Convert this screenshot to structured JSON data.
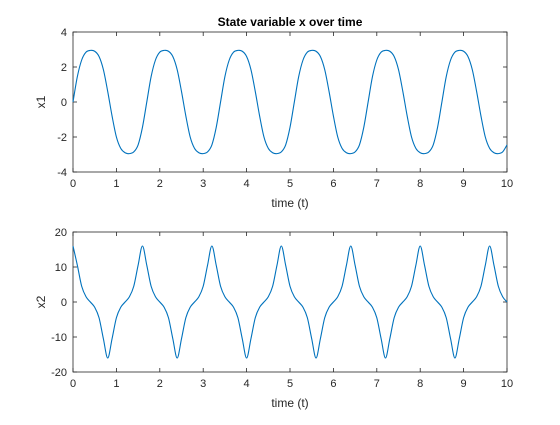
{
  "figure": {
    "background": "#ffffff",
    "line_color": "#0072BD",
    "axis_color": "#262626"
  },
  "chart_data": [
    {
      "type": "line",
      "title": "State variable x over time",
      "xlabel": "time (t)",
      "ylabel": "x1",
      "xlim": [
        0,
        10
      ],
      "ylim": [
        -4,
        4
      ],
      "xticks": [
        0,
        1,
        2,
        3,
        4,
        5,
        6,
        7,
        8,
        9,
        10
      ],
      "yticks": [
        -4,
        -2,
        0,
        2,
        4
      ],
      "grid": false,
      "series": [
        {
          "x": [
            0,
            0.1,
            0.2,
            0.3,
            0.4,
            0.5,
            0.6,
            0.7,
            0.8,
            0.9,
            1.0,
            1.1,
            1.2,
            1.3,
            1.4,
            1.5,
            1.6,
            1.7,
            1.8,
            1.9,
            2.0,
            2.1,
            2.2,
            2.3,
            2.4,
            2.5,
            2.6,
            2.7,
            2.8,
            2.9,
            3.0,
            3.1,
            3.2,
            3.3,
            3.4,
            3.5,
            3.6,
            3.7,
            3.8,
            3.9,
            4.0,
            4.1,
            4.2,
            4.3,
            4.4,
            4.5,
            4.6,
            4.7,
            4.8,
            4.9,
            5.0,
            5.1,
            5.2,
            5.3,
            5.4,
            5.5,
            5.6,
            5.7,
            5.8,
            5.9,
            6.0,
            6.1,
            6.2,
            6.3,
            6.4,
            6.5,
            6.6,
            6.7,
            6.8,
            6.9,
            7.0,
            7.1,
            7.2,
            7.3,
            7.4,
            7.5,
            7.6,
            7.7,
            7.8,
            7.9,
            8.0,
            8.1,
            8.2,
            8.3,
            8.4,
            8.5,
            8.6,
            8.7,
            8.8,
            8.9,
            9.0,
            9.1,
            9.2,
            9.3,
            9.4,
            9.5,
            9.6,
            9.7,
            9.8,
            9.9,
            10.0
          ],
          "y": [
            0,
            1.45,
            2.4,
            2.85,
            2.95,
            2.9,
            2.6,
            1.85,
            0.6,
            -0.8,
            -2.0,
            -2.65,
            -2.9,
            -2.95,
            -2.85,
            -2.45,
            -1.45,
            0,
            1.45,
            2.4,
            2.85,
            2.95,
            2.9,
            2.6,
            1.85,
            0.6,
            -0.8,
            -2.0,
            -2.65,
            -2.9,
            -2.95,
            -2.85,
            -2.45,
            -1.45,
            0,
            1.45,
            2.4,
            2.85,
            2.95,
            2.9,
            2.6,
            1.85,
            0.6,
            -0.8,
            -2.0,
            -2.65,
            -2.9,
            -2.95,
            -2.85,
            -2.45,
            -1.45,
            0,
            1.45,
            2.4,
            2.85,
            2.95,
            2.9,
            2.6,
            1.85,
            0.6,
            -0.8,
            -2.0,
            -2.65,
            -2.9,
            -2.95,
            -2.85,
            -2.45,
            -1.45,
            0,
            1.45,
            2.4,
            2.85,
            2.95,
            2.9,
            2.6,
            1.85,
            0.6,
            -0.8,
            -2.0,
            -2.65,
            -2.9,
            -2.95,
            -2.85,
            -2.45,
            -1.45,
            0,
            1.45,
            2.4,
            2.85,
            2.95,
            2.9,
            2.6,
            1.85,
            0.6,
            -0.8,
            -2.0,
            -2.65,
            -2.9,
            -2.95,
            -2.85,
            -2.45
          ]
        }
      ]
    },
    {
      "type": "line",
      "title": "",
      "xlabel": "time (t)",
      "ylabel": "x2",
      "xlim": [
        0,
        10
      ],
      "ylim": [
        -20,
        20
      ],
      "xticks": [
        0,
        1,
        2,
        3,
        4,
        5,
        6,
        7,
        8,
        9,
        10
      ],
      "yticks": [
        -20,
        -10,
        0,
        10,
        20
      ],
      "grid": false,
      "series": [
        {
          "x": [
            0,
            0.1,
            0.2,
            0.3,
            0.4,
            0.5,
            0.6,
            0.7,
            0.8,
            0.9,
            1.0,
            1.1,
            1.2,
            1.3,
            1.4,
            1.5,
            1.6,
            1.7,
            1.8,
            1.9,
            2.0,
            2.1,
            2.2,
            2.3,
            2.4,
            2.5,
            2.6,
            2.7,
            2.8,
            2.9,
            3.0,
            3.1,
            3.2,
            3.3,
            3.4,
            3.5,
            3.6,
            3.7,
            3.8,
            3.9,
            4.0,
            4.1,
            4.2,
            4.3,
            4.4,
            4.5,
            4.6,
            4.7,
            4.8,
            4.9,
            5.0,
            5.1,
            5.2,
            5.3,
            5.4,
            5.5,
            5.6,
            5.7,
            5.8,
            5.9,
            6.0,
            6.1,
            6.2,
            6.3,
            6.4,
            6.5,
            6.6,
            6.7,
            6.8,
            6.9,
            7.0,
            7.1,
            7.2,
            7.3,
            7.4,
            7.5,
            7.6,
            7.7,
            7.8,
            7.9,
            8.0,
            8.1,
            8.2,
            8.3,
            8.4,
            8.5,
            8.6,
            8.7,
            8.8,
            8.9,
            9.0,
            9.1,
            9.2,
            9.3,
            9.4,
            9.5,
            9.6,
            9.7,
            9.8,
            9.9,
            10.0
          ],
          "y": [
            16,
            10.5,
            4.5,
            1.5,
            0,
            -1.5,
            -4.5,
            -10.5,
            -16,
            -10.5,
            -4.5,
            -1.5,
            0,
            1.5,
            4.5,
            10.5,
            16,
            10.5,
            4.5,
            1.5,
            0,
            -1.5,
            -4.5,
            -10.5,
            -16,
            -10.5,
            -4.5,
            -1.5,
            0,
            1.5,
            4.5,
            10.5,
            16,
            10.5,
            4.5,
            1.5,
            0,
            -1.5,
            -4.5,
            -10.5,
            -16,
            -10.5,
            -4.5,
            -1.5,
            0,
            1.5,
            4.5,
            10.5,
            16,
            10.5,
            4.5,
            1.5,
            0,
            -1.5,
            -4.5,
            -10.5,
            -16,
            -10.5,
            -4.5,
            -1.5,
            0,
            1.5,
            4.5,
            10.5,
            16,
            10.5,
            4.5,
            1.5,
            0,
            -1.5,
            -4.5,
            -10.5,
            -16,
            -10.5,
            -4.5,
            -1.5,
            0,
            1.5,
            4.5,
            10.5,
            16,
            10.5,
            4.5,
            1.5,
            0,
            -1.5,
            -4.5,
            -10.5,
            -16,
            -10.5,
            -4.5,
            -1.5,
            0,
            1.5,
            4.5,
            10.5,
            16,
            10.5,
            4.5,
            1.5,
            0
          ]
        }
      ]
    }
  ]
}
